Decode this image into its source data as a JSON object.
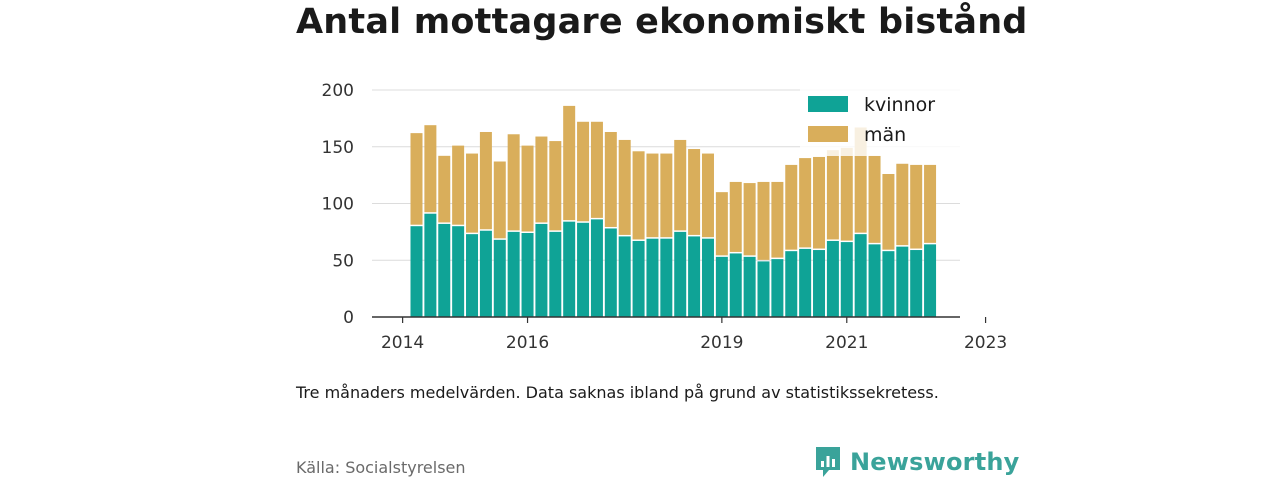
{
  "title": "Antal mottagare ekonomiskt bistånd",
  "note": "Tre månaders medelvärden. Data saknas ibland på grund av statistikssekretess.",
  "source": "Källa: Socialstyrelsen",
  "brand": "Newsworthy",
  "colors": {
    "kvinnor": "#0fa396",
    "man": "#d9ae5b",
    "brand": "#3aa39a"
  },
  "chart_data": {
    "type": "bar",
    "stacked": true,
    "title": "Antal mottagare ekonomiskt bistånd",
    "xlabel": "",
    "ylabel": "",
    "ylim": [
      0,
      200
    ],
    "yticks": [
      0,
      50,
      100,
      150,
      200
    ],
    "grid": true,
    "legend_position": "top-right",
    "x_ticks": [
      {
        "label": "2014",
        "index": -1
      },
      {
        "label": "2016",
        "index": 8
      },
      {
        "label": "2019",
        "index": 22
      },
      {
        "label": "2021",
        "index": 31
      },
      {
        "label": "2023",
        "index": 41
      }
    ],
    "series": [
      {
        "name": "kvinnor",
        "values": [
          80,
          91,
          82,
          80,
          73,
          76,
          68,
          75,
          74,
          82,
          75,
          84,
          83,
          86,
          78,
          71,
          67,
          69,
          69,
          75,
          71,
          69,
          53,
          56,
          53,
          49,
          51,
          58,
          60,
          59,
          67,
          66,
          73,
          64,
          58,
          62,
          59,
          64
        ]
      },
      {
        "name": "män",
        "values": [
          82,
          78,
          60,
          71,
          71,
          87,
          69,
          86,
          77,
          77,
          80,
          102,
          89,
          86,
          85,
          85,
          79,
          75,
          75,
          81,
          77,
          75,
          57,
          63,
          65,
          70,
          68,
          76,
          80,
          82,
          80,
          83,
          94,
          78,
          68,
          73,
          75,
          70
        ]
      }
    ]
  }
}
